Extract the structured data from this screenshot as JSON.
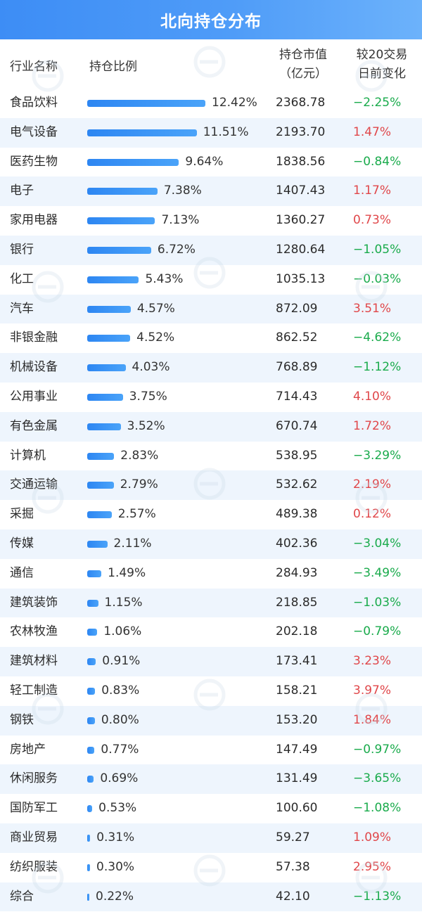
{
  "title": "北向持仓分布",
  "headers": {
    "industry": "行业名称",
    "ratio": "持仓比例",
    "value_line1": "持仓市值",
    "value_line2": "（亿元）",
    "change_line1": "较20交易",
    "change_line2": "日前变化"
  },
  "colors": {
    "accent": "#3d8df5",
    "bar": "#2d86f2",
    "positive": "#e0474a",
    "negative": "#1aab4c",
    "row_alt": "#eef5fd"
  },
  "chart_data": {
    "type": "table",
    "columns": [
      "行业名称",
      "持仓比例",
      "持仓市值（亿元）",
      "较20交易日前变化"
    ],
    "rows": [
      {
        "name": "食品饮料",
        "ratio": 12.42,
        "ratio_label": "12.42%",
        "value": "2368.78",
        "change": -2.25,
        "change_label": "−2.25%"
      },
      {
        "name": "电气设备",
        "ratio": 11.51,
        "ratio_label": "11.51%",
        "value": "2193.70",
        "change": 1.47,
        "change_label": "1.47%"
      },
      {
        "name": "医药生物",
        "ratio": 9.64,
        "ratio_label": "9.64%",
        "value": "1838.56",
        "change": -0.84,
        "change_label": "−0.84%"
      },
      {
        "name": "电子",
        "ratio": 7.38,
        "ratio_label": "7.38%",
        "value": "1407.43",
        "change": 1.17,
        "change_label": "1.17%"
      },
      {
        "name": "家用电器",
        "ratio": 7.13,
        "ratio_label": "7.13%",
        "value": "1360.27",
        "change": 0.73,
        "change_label": "0.73%"
      },
      {
        "name": "银行",
        "ratio": 6.72,
        "ratio_label": "6.72%",
        "value": "1280.64",
        "change": -1.05,
        "change_label": "−1.05%"
      },
      {
        "name": "化工",
        "ratio": 5.43,
        "ratio_label": "5.43%",
        "value": "1035.13",
        "change": -0.03,
        "change_label": "−0.03%"
      },
      {
        "name": "汽车",
        "ratio": 4.57,
        "ratio_label": "4.57%",
        "value": "872.09",
        "change": 3.51,
        "change_label": "3.51%"
      },
      {
        "name": "非银金融",
        "ratio": 4.52,
        "ratio_label": "4.52%",
        "value": "862.52",
        "change": -4.62,
        "change_label": "−4.62%"
      },
      {
        "name": "机械设备",
        "ratio": 4.03,
        "ratio_label": "4.03%",
        "value": "768.89",
        "change": -1.12,
        "change_label": "−1.12%"
      },
      {
        "name": "公用事业",
        "ratio": 3.75,
        "ratio_label": "3.75%",
        "value": "714.43",
        "change": 4.1,
        "change_label": "4.10%"
      },
      {
        "name": "有色金属",
        "ratio": 3.52,
        "ratio_label": "3.52%",
        "value": "670.74",
        "change": 1.72,
        "change_label": "1.72%"
      },
      {
        "name": "计算机",
        "ratio": 2.83,
        "ratio_label": "2.83%",
        "value": "538.95",
        "change": -3.29,
        "change_label": "−3.29%"
      },
      {
        "name": "交通运输",
        "ratio": 2.79,
        "ratio_label": "2.79%",
        "value": "532.62",
        "change": 2.19,
        "change_label": "2.19%"
      },
      {
        "name": "采掘",
        "ratio": 2.57,
        "ratio_label": "2.57%",
        "value": "489.38",
        "change": 0.12,
        "change_label": "0.12%"
      },
      {
        "name": "传媒",
        "ratio": 2.11,
        "ratio_label": "2.11%",
        "value": "402.36",
        "change": -3.04,
        "change_label": "−3.04%"
      },
      {
        "name": "通信",
        "ratio": 1.49,
        "ratio_label": "1.49%",
        "value": "284.93",
        "change": -3.49,
        "change_label": "−3.49%"
      },
      {
        "name": "建筑装饰",
        "ratio": 1.15,
        "ratio_label": "1.15%",
        "value": "218.85",
        "change": -1.03,
        "change_label": "−1.03%"
      },
      {
        "name": "农林牧渔",
        "ratio": 1.06,
        "ratio_label": "1.06%",
        "value": "202.18",
        "change": -0.79,
        "change_label": "−0.79%"
      },
      {
        "name": "建筑材料",
        "ratio": 0.91,
        "ratio_label": "0.91%",
        "value": "173.41",
        "change": 3.23,
        "change_label": "3.23%"
      },
      {
        "name": "轻工制造",
        "ratio": 0.83,
        "ratio_label": "0.83%",
        "value": "158.21",
        "change": 3.97,
        "change_label": "3.97%"
      },
      {
        "name": "钢铁",
        "ratio": 0.8,
        "ratio_label": "0.80%",
        "value": "153.20",
        "change": 1.84,
        "change_label": "1.84%"
      },
      {
        "name": "房地产",
        "ratio": 0.77,
        "ratio_label": "0.77%",
        "value": "147.49",
        "change": -0.97,
        "change_label": "−0.97%"
      },
      {
        "name": "休闲服务",
        "ratio": 0.69,
        "ratio_label": "0.69%",
        "value": "131.49",
        "change": -3.65,
        "change_label": "−3.65%"
      },
      {
        "name": "国防军工",
        "ratio": 0.53,
        "ratio_label": "0.53%",
        "value": "100.60",
        "change": -1.08,
        "change_label": "−1.08%"
      },
      {
        "name": "商业贸易",
        "ratio": 0.31,
        "ratio_label": "0.31%",
        "value": "59.27",
        "change": 1.09,
        "change_label": "1.09%"
      },
      {
        "name": "纺织服装",
        "ratio": 0.3,
        "ratio_label": "0.30%",
        "value": "57.38",
        "change": 2.95,
        "change_label": "2.95%"
      },
      {
        "name": "综合",
        "ratio": 0.22,
        "ratio_label": "0.22%",
        "value": "42.10",
        "change": -1.13,
        "change_label": "−1.13%"
      }
    ]
  }
}
